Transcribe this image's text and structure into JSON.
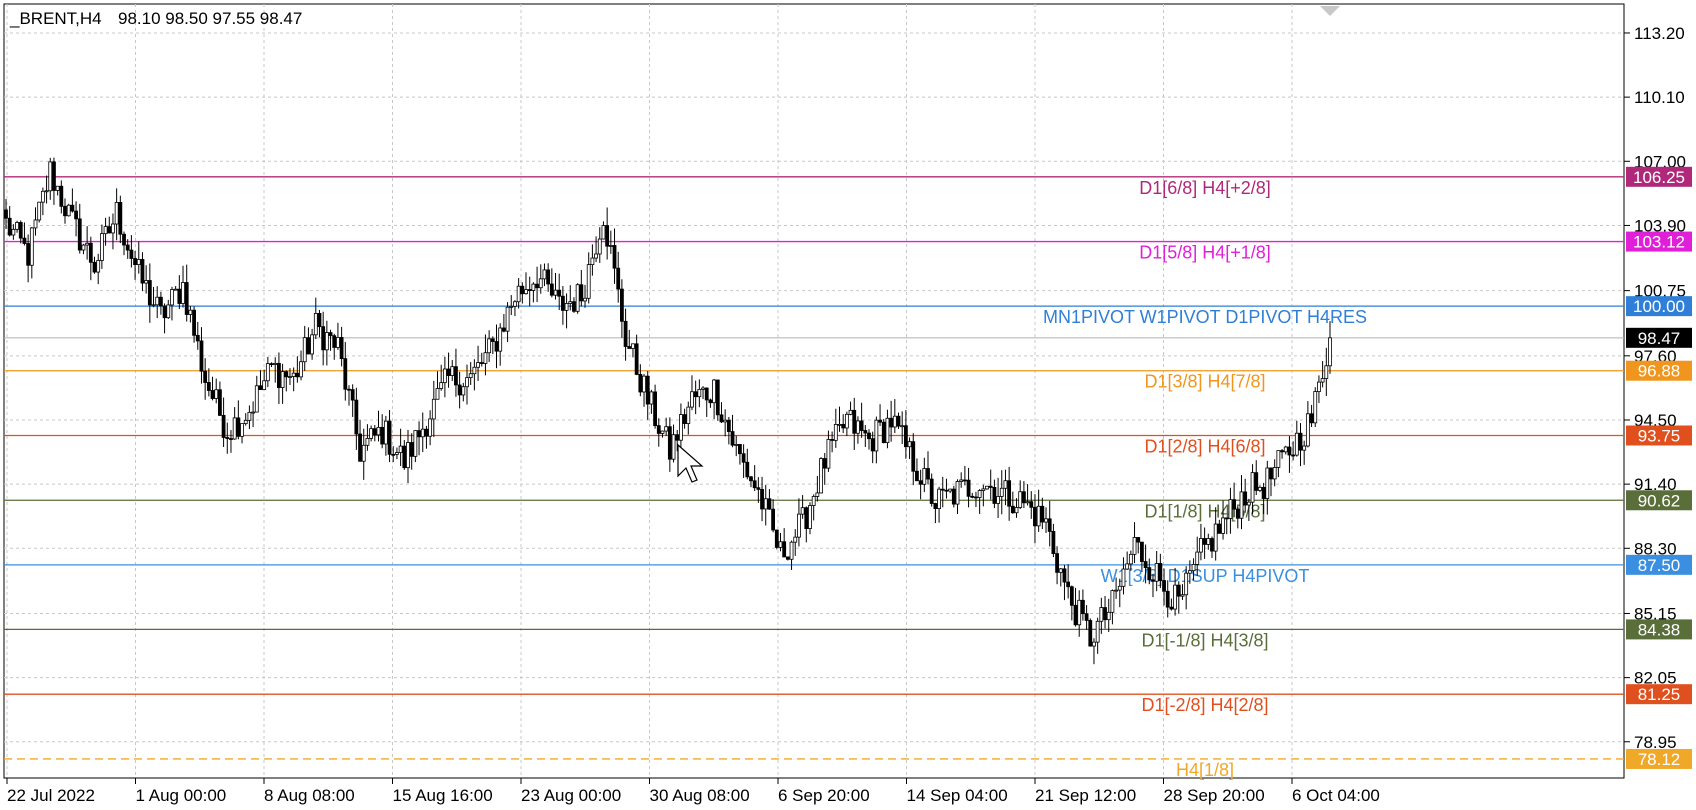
{
  "header": {
    "symbol": "_BRENT,H4",
    "ohlc": "98.10 98.50 97.55 98.47"
  },
  "colors": {
    "background": "#ffffff",
    "grid": "#c8c8c8",
    "axis": "#000000",
    "candle_up_body": "#ffffff",
    "candle_down_body": "#000000",
    "candle_wick": "#000000"
  },
  "chart_data": {
    "type": "candlestick",
    "timeframe": "H4",
    "ylim": [
      77.2,
      114.6
    ],
    "grid": true,
    "y_ticks": [
      "113.20",
      "110.10",
      "107.00",
      "103.90",
      "100.75",
      "97.60",
      "94.50",
      "91.40",
      "88.30",
      "85.15",
      "82.05",
      "78.95"
    ],
    "x_ticks": [
      "22 Jul 2022",
      "1 Aug 00:00",
      "8 Aug 08:00",
      "15 Aug 16:00",
      "23 Aug 00:00",
      "30 Aug 08:00",
      "6 Sep 20:00",
      "14 Sep 04:00",
      "21 Sep 12:00",
      "28 Sep 20:00",
      "6 Oct 04:00"
    ],
    "current_price": "98.47",
    "levels": [
      {
        "value": 106.25,
        "badge": "106.25",
        "label": "D1[6/8] H4[+2/8]",
        "color": "#b0287a",
        "dashed": false
      },
      {
        "value": 103.12,
        "badge": "103.12",
        "label": "D1[5/8] H4[+1/8]",
        "color": "#e020d8",
        "dashed": false
      },
      {
        "value": 100.0,
        "badge": "100.00",
        "label": "MN1PIVOT W1PIVOT D1PIVOT H4RES",
        "color": "#2f7fd8",
        "dashed": false
      },
      {
        "value": 96.88,
        "badge": "96.88",
        "label": "D1[3/8] H4[7/8]",
        "color": "#f0961e",
        "dashed": false
      },
      {
        "value": 93.75,
        "badge": "93.75",
        "label": "D1[2/8] H4[6/8]",
        "color": "#e0501e",
        "dashed": false
      },
      {
        "value": 90.62,
        "badge": "90.62",
        "label": "D1[1/8] H4[5/8]",
        "color": "#5a6e3a",
        "dashed": false
      },
      {
        "value": 87.5,
        "badge": "87.50",
        "label": "W1[3/8] D1SUP H4PIVOT",
        "color": "#3a8fe0",
        "dashed": false
      },
      {
        "value": 84.38,
        "badge": "84.38",
        "label": "D1[-1/8] H4[3/8]",
        "color": "#5a6e3a",
        "dashed": false
      },
      {
        "value": 81.25,
        "badge": "81.25",
        "label": "D1[-2/8] H4[2/8]",
        "color": "#e0501e",
        "dashed": false
      },
      {
        "value": 78.12,
        "badge": "78.12",
        "label": "H4[1/8]",
        "color": "#f0a828",
        "dashed": true
      }
    ],
    "anchors": [
      [
        0,
        104.0
      ],
      [
        6,
        102.5
      ],
      [
        12,
        106.5
      ],
      [
        18,
        104.0
      ],
      [
        24,
        102.0
      ],
      [
        30,
        104.5
      ],
      [
        36,
        101.5
      ],
      [
        42,
        99.5
      ],
      [
        48,
        101.0
      ],
      [
        54,
        96.5
      ],
      [
        60,
        94.0
      ],
      [
        66,
        95.0
      ],
      [
        72,
        97.0
      ],
      [
        78,
        96.5
      ],
      [
        84,
        99.0
      ],
      [
        90,
        98.0
      ],
      [
        96,
        93.0
      ],
      [
        102,
        94.0
      ],
      [
        108,
        92.5
      ],
      [
        114,
        94.5
      ],
      [
        120,
        96.5
      ],
      [
        126,
        96.5
      ],
      [
        132,
        98.0
      ],
      [
        138,
        100.5
      ],
      [
        144,
        101.5
      ],
      [
        150,
        100.0
      ],
      [
        156,
        100.5
      ],
      [
        162,
        104.5
      ],
      [
        168,
        98.5
      ],
      [
        174,
        95.5
      ],
      [
        180,
        93.0
      ],
      [
        186,
        95.5
      ],
      [
        192,
        96.0
      ],
      [
        198,
        93.0
      ],
      [
        204,
        91.0
      ],
      [
        210,
        88.0
      ],
      [
        216,
        89.5
      ],
      [
        222,
        92.5
      ],
      [
        228,
        94.5
      ],
      [
        234,
        93.5
      ],
      [
        240,
        94.5
      ],
      [
        246,
        92.5
      ],
      [
        252,
        90.5
      ],
      [
        258,
        91.0
      ],
      [
        264,
        91.5
      ],
      [
        270,
        91.0
      ],
      [
        276,
        90.5
      ],
      [
        282,
        89.5
      ],
      [
        288,
        86.0
      ],
      [
        294,
        84.0
      ],
      [
        300,
        85.5
      ],
      [
        306,
        88.5
      ],
      [
        312,
        87.0
      ],
      [
        318,
        85.5
      ],
      [
        324,
        88.0
      ],
      [
        330,
        89.5
      ],
      [
        336,
        91.0
      ],
      [
        342,
        91.5
      ],
      [
        348,
        93.0
      ],
      [
        354,
        94.5
      ],
      [
        359,
        98.47
      ]
    ]
  }
}
